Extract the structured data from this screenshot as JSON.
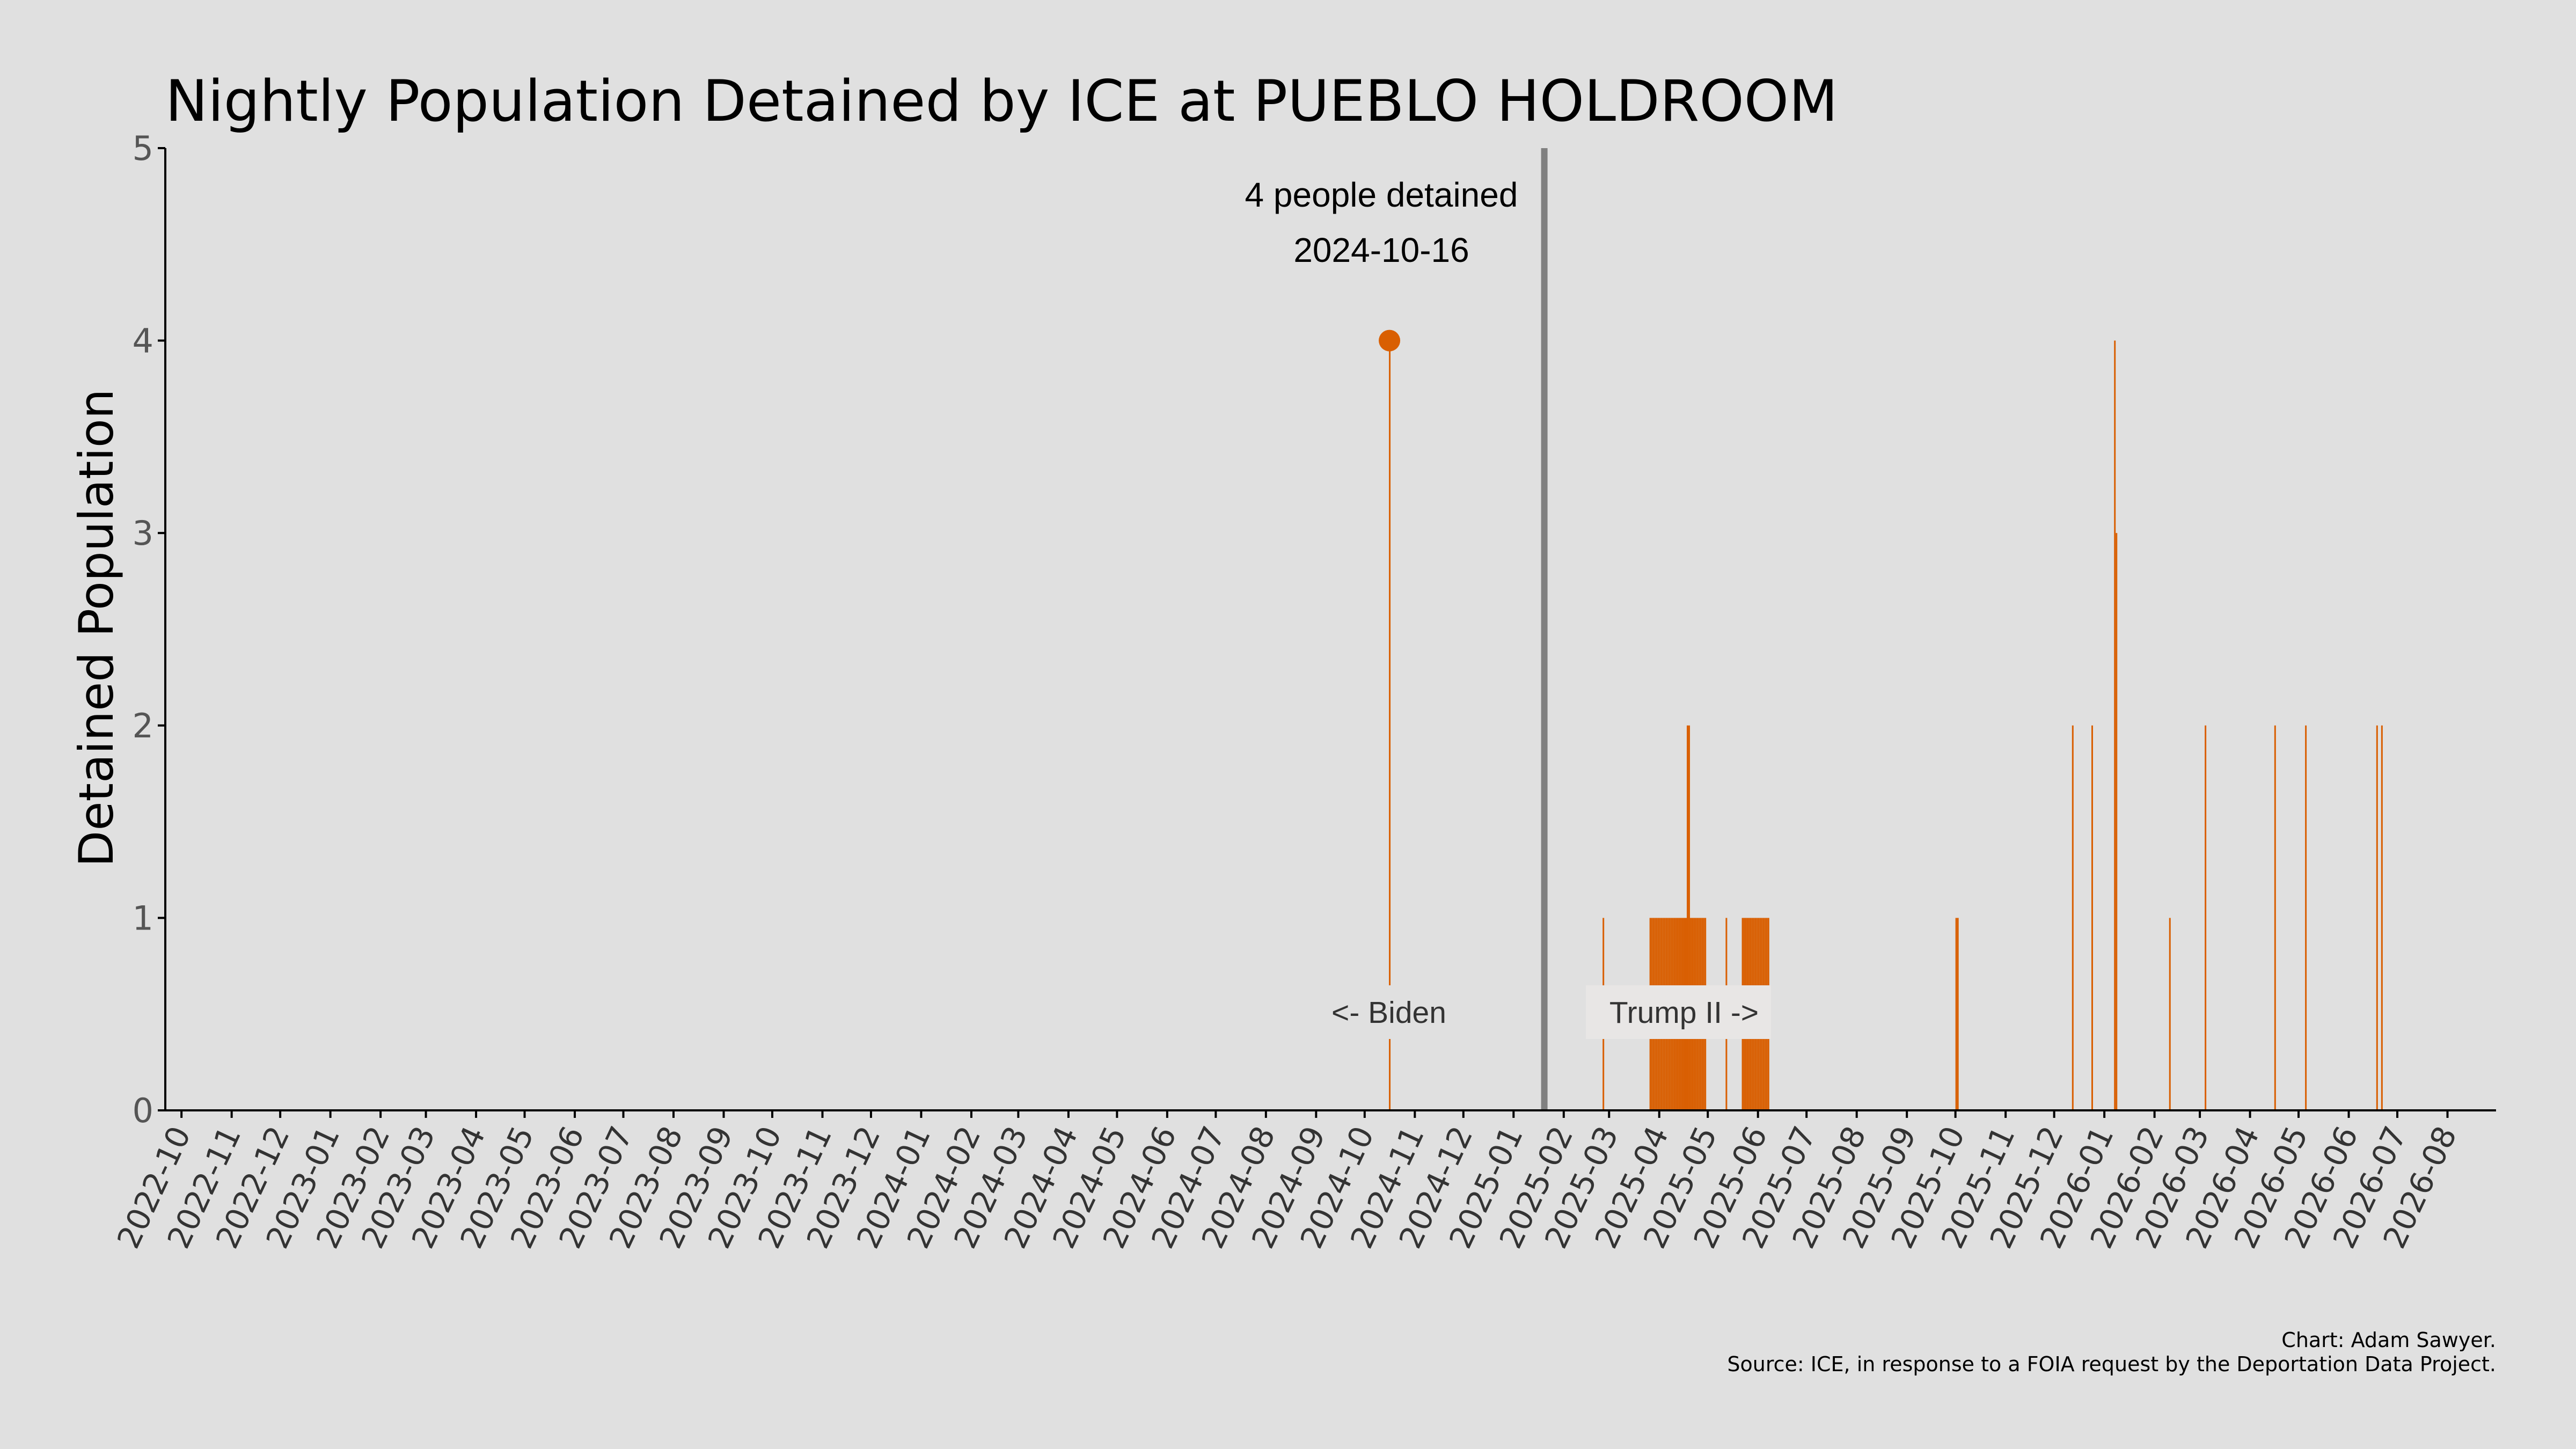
{
  "chart_data": {
    "type": "bar",
    "title": "Nightly Population Detained by ICE at PUEBLO HOLDROOM",
    "xlabel": "",
    "ylabel": "Detained Population",
    "ylim": [
      0,
      5
    ],
    "yticks": [
      "0",
      "1",
      "2",
      "3",
      "4",
      "5"
    ],
    "xlim": [
      "2022-09-21",
      "2026-08-31"
    ],
    "xticks": [
      "2022-10",
      "2022-11",
      "2022-12",
      "2023-01",
      "2023-02",
      "2023-03",
      "2023-04",
      "2023-05",
      "2023-06",
      "2023-07",
      "2023-08",
      "2023-09",
      "2023-10",
      "2023-11",
      "2023-12",
      "2024-01",
      "2024-02",
      "2024-03",
      "2024-04",
      "2024-05",
      "2024-06",
      "2024-07",
      "2024-08",
      "2024-09",
      "2024-10",
      "2024-11",
      "2024-12",
      "2025-01",
      "2025-02",
      "2025-03",
      "2025-04",
      "2025-05",
      "2025-06",
      "2025-07",
      "2025-08",
      "2025-09",
      "2025-10",
      "2025-11",
      "2025-12",
      "2026-01",
      "2026-02",
      "2026-03",
      "2026-04",
      "2026-05",
      "2026-06",
      "2026-07",
      "2026-08"
    ],
    "grid": false,
    "bar_color": "#d95f02",
    "divider_color": "#808080",
    "series": [
      {
        "values": [
          {
            "date": "2024-10-16",
            "value": 4
          },
          {
            "date": "2025-02-25",
            "value": 1
          },
          {
            "date": "2025-03-26",
            "value": 1
          },
          {
            "date": "2025-03-27",
            "value": 1
          },
          {
            "date": "2025-03-28",
            "value": 1
          },
          {
            "date": "2025-03-29",
            "value": 1
          },
          {
            "date": "2025-03-30",
            "value": 1
          },
          {
            "date": "2025-03-31",
            "value": 1
          },
          {
            "date": "2025-04-01",
            "value": 1
          },
          {
            "date": "2025-04-02",
            "value": 1
          },
          {
            "date": "2025-04-03",
            "value": 1
          },
          {
            "date": "2025-04-04",
            "value": 1
          },
          {
            "date": "2025-04-05",
            "value": 1
          },
          {
            "date": "2025-04-06",
            "value": 1
          },
          {
            "date": "2025-04-07",
            "value": 1
          },
          {
            "date": "2025-04-08",
            "value": 1
          },
          {
            "date": "2025-04-09",
            "value": 1
          },
          {
            "date": "2025-04-10",
            "value": 1
          },
          {
            "date": "2025-04-11",
            "value": 1
          },
          {
            "date": "2025-04-12",
            "value": 1
          },
          {
            "date": "2025-04-13",
            "value": 1
          },
          {
            "date": "2025-04-14",
            "value": 1
          },
          {
            "date": "2025-04-15",
            "value": 1
          },
          {
            "date": "2025-04-16",
            "value": 1
          },
          {
            "date": "2025-04-17",
            "value": 1
          },
          {
            "date": "2025-04-18",
            "value": 2
          },
          {
            "date": "2025-04-19",
            "value": 2
          },
          {
            "date": "2025-04-20",
            "value": 1
          },
          {
            "date": "2025-04-21",
            "value": 1
          },
          {
            "date": "2025-04-22",
            "value": 1
          },
          {
            "date": "2025-04-23",
            "value": 1
          },
          {
            "date": "2025-04-24",
            "value": 1
          },
          {
            "date": "2025-04-25",
            "value": 1
          },
          {
            "date": "2025-04-26",
            "value": 1
          },
          {
            "date": "2025-04-27",
            "value": 1
          },
          {
            "date": "2025-04-28",
            "value": 1
          },
          {
            "date": "2025-04-29",
            "value": 1
          },
          {
            "date": "2025-05-12",
            "value": 1
          },
          {
            "date": "2025-05-22",
            "value": 1
          },
          {
            "date": "2025-05-23",
            "value": 1
          },
          {
            "date": "2025-05-24",
            "value": 1
          },
          {
            "date": "2025-05-25",
            "value": 1
          },
          {
            "date": "2025-05-26",
            "value": 1
          },
          {
            "date": "2025-05-27",
            "value": 1
          },
          {
            "date": "2025-05-28",
            "value": 1
          },
          {
            "date": "2025-05-29",
            "value": 1
          },
          {
            "date": "2025-05-30",
            "value": 1
          },
          {
            "date": "2025-05-31",
            "value": 1
          },
          {
            "date": "2025-06-01",
            "value": 1
          },
          {
            "date": "2025-06-02",
            "value": 1
          },
          {
            "date": "2025-06-03",
            "value": 1
          },
          {
            "date": "2025-06-04",
            "value": 1
          },
          {
            "date": "2025-06-05",
            "value": 1
          },
          {
            "date": "2025-06-06",
            "value": 1
          },
          {
            "date": "2025-06-07",
            "value": 1
          },
          {
            "date": "2025-10-01",
            "value": 1
          },
          {
            "date": "2025-10-02",
            "value": 1
          },
          {
            "date": "2025-12-12",
            "value": 2
          },
          {
            "date": "2025-12-24",
            "value": 2
          },
          {
            "date": "2026-01-07",
            "value": 4
          },
          {
            "date": "2026-01-08",
            "value": 3
          },
          {
            "date": "2026-02-10",
            "value": 1
          },
          {
            "date": "2026-03-04",
            "value": 2
          },
          {
            "date": "2026-04-16",
            "value": 2
          },
          {
            "date": "2026-05-05",
            "value": 2
          },
          {
            "date": "2026-06-18",
            "value": 2
          },
          {
            "date": "2026-06-21",
            "value": 2
          }
        ]
      }
    ],
    "highlight": {
      "date": "2024-10-16",
      "value": 4,
      "label_line1": "4 people detained",
      "label_line2": "2024-10-16"
    },
    "divider": {
      "date": "2025-01-20",
      "left_label": "<- Biden",
      "right_label": "Trump II ->"
    },
    "credit": "Chart: Adam Sawyer.",
    "source": "Source: ICE, in response to a FOIA request by the Deportation Data Project."
  }
}
